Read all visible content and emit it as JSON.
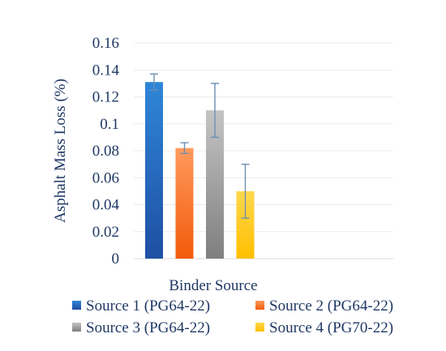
{
  "chart_data": {
    "type": "bar",
    "ylabel": "Asphalt Mass  Loss (%)",
    "xlabel": "Binder Source",
    "ylim": [
      0,
      0.16
    ],
    "yticks": [
      "0",
      "0.02",
      "0.04",
      "0.06",
      "0.08",
      "0.1",
      "0.12",
      "0.14",
      "0.16"
    ],
    "grid": true,
    "legend_position": "bottom",
    "series": [
      {
        "name": "Source 1 (PG64-22)",
        "value": 0.131,
        "error": 0.006,
        "color_top": "#2f86d8",
        "color_bottom": "#1e4fa3"
      },
      {
        "name": "Source 2 (PG64-22)",
        "value": 0.082,
        "error": 0.004,
        "color_top": "#ff9a5e",
        "color_bottom": "#f25a0a"
      },
      {
        "name": "Source 3 (PG64-22)",
        "value": 0.11,
        "error": 0.02,
        "color_top": "#c4c4c4",
        "color_bottom": "#7f7f7f"
      },
      {
        "name": "Source 4 (PG70-22)",
        "value": 0.05,
        "error": 0.02,
        "color_top": "#ffd84d",
        "color_bottom": "#ffbf00"
      }
    ]
  }
}
